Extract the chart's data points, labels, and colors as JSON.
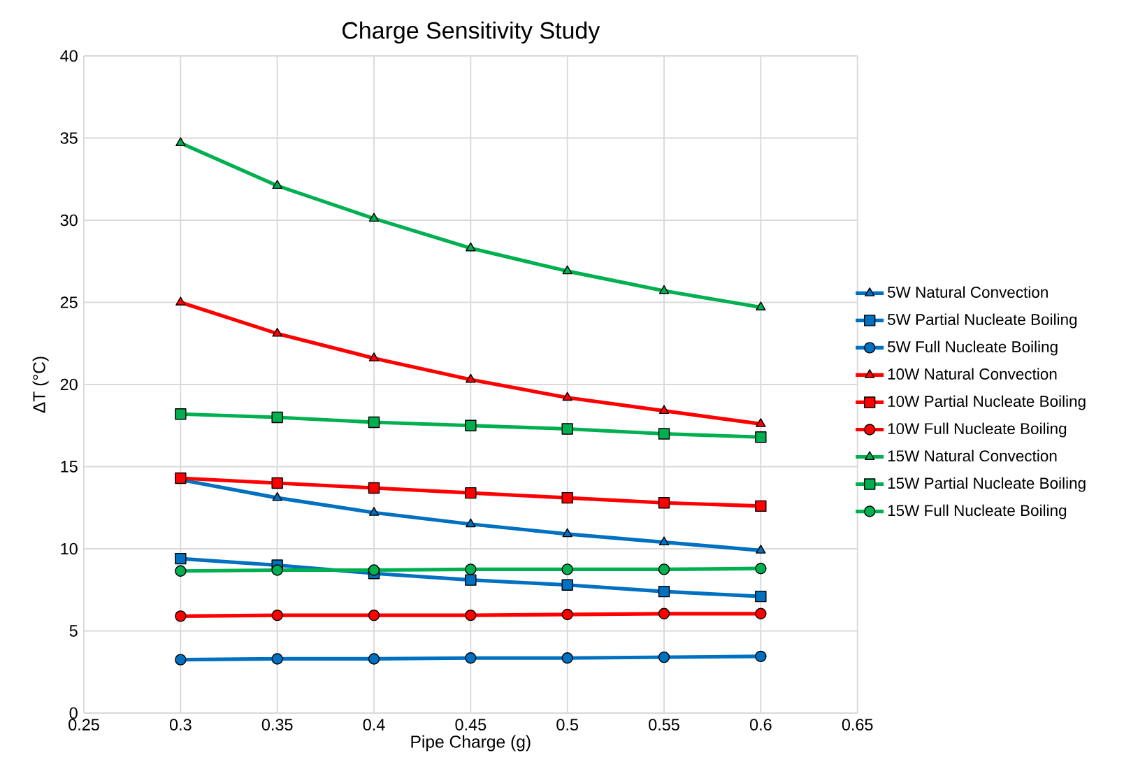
{
  "chart_data": {
    "type": "line",
    "title": "Charge Sensitivity Study",
    "xlabel": "Pipe Charge (g)",
    "ylabel": "ΔT (°C)",
    "x": [
      0.3,
      0.35,
      0.4,
      0.45,
      0.5,
      0.55,
      0.6
    ],
    "xlim": [
      0.25,
      0.65
    ],
    "xticks": [
      0.25,
      0.3,
      0.35,
      0.4,
      0.45,
      0.5,
      0.55,
      0.6,
      0.65
    ],
    "ylim": [
      0,
      40
    ],
    "yticks": [
      0,
      5,
      10,
      15,
      20,
      25,
      30,
      35,
      40
    ],
    "grid": true,
    "legend": "right",
    "line_style": "solid",
    "series": [
      {
        "name": "5W Natural Convection",
        "color": "#0070c0",
        "marker": "triangle",
        "values": [
          14.2,
          13.1,
          12.2,
          11.5,
          10.9,
          10.4,
          9.9
        ]
      },
      {
        "name": "5W Partial Nucleate Boiling",
        "color": "#0070c0",
        "marker": "square",
        "values": [
          9.4,
          9.0,
          8.5,
          8.1,
          7.8,
          7.4,
          7.1
        ]
      },
      {
        "name": "5W Full Nucleate Boiling",
        "color": "#0070c0",
        "marker": "circle",
        "values": [
          3.25,
          3.3,
          3.3,
          3.35,
          3.35,
          3.4,
          3.45
        ]
      },
      {
        "name": "10W Natural Convection",
        "color": "#ff0000",
        "marker": "triangle",
        "values": [
          25.0,
          23.1,
          21.6,
          20.3,
          19.2,
          18.4,
          17.6
        ]
      },
      {
        "name": "10W Partial Nucleate Boiling",
        "color": "#ff0000",
        "marker": "square",
        "values": [
          14.3,
          14.0,
          13.7,
          13.4,
          13.1,
          12.8,
          12.6
        ]
      },
      {
        "name": "10W Full Nucleate Boiling",
        "color": "#ff0000",
        "marker": "circle",
        "values": [
          5.9,
          5.95,
          5.95,
          5.95,
          6.0,
          6.05,
          6.05
        ]
      },
      {
        "name": "15W Natural Convection",
        "color": "#00b050",
        "marker": "triangle",
        "values": [
          34.7,
          32.1,
          30.1,
          28.3,
          26.9,
          25.7,
          24.7
        ]
      },
      {
        "name": "15W Partial Nucleate Boiling",
        "color": "#00b050",
        "marker": "square",
        "values": [
          18.2,
          18.0,
          17.7,
          17.5,
          17.3,
          17.0,
          16.8
        ]
      },
      {
        "name": "15W Full Nucleate Boiling",
        "color": "#00b050",
        "marker": "circle",
        "values": [
          8.65,
          8.7,
          8.7,
          8.75,
          8.75,
          8.75,
          8.8
        ]
      }
    ]
  }
}
